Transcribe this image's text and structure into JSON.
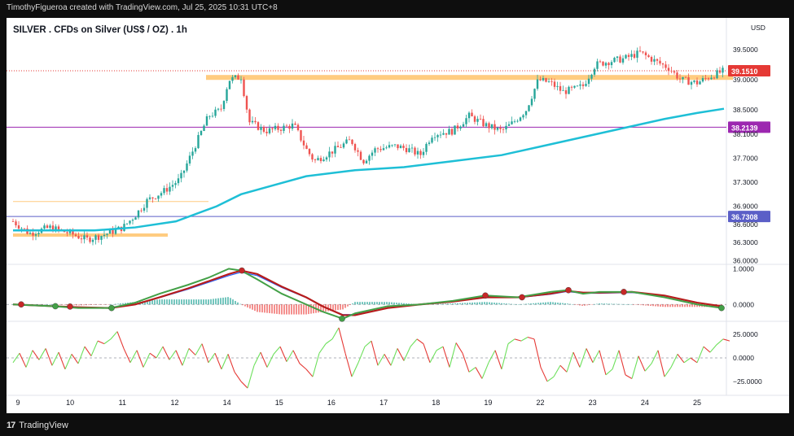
{
  "header": {
    "attribution": "TimothyFigueroa created with TradingView.com, Jul 25, 2025 10:31 UTC+8"
  },
  "footer": {
    "brand": "TradingView",
    "logo_glyph": "17"
  },
  "chart": {
    "title": "SILVER . CFDs on Silver (US$ / OZ) . 1h",
    "currency": "USD"
  },
  "colors": {
    "up": "#26a69a",
    "down": "#ef5350",
    "ma": "#1ebfd6",
    "zone": "#ffcc80",
    "level_purple": "#9c27b0",
    "level_indigo": "#5b5fc7",
    "current_price": "#e53935",
    "macd_fast": "#43a047",
    "macd_slow": "#b71c1c",
    "macd_signal": "#2962ff",
    "osc_up": "#6de05c",
    "osc_down": "#e53935"
  },
  "chart_data": [
    {
      "type": "candlestick",
      "title": "SILVER . CFDs on Silver (US$ / OZ) . 1h",
      "x": [
        "9",
        "10",
        "11",
        "12",
        "14",
        "15",
        "16",
        "17",
        "18",
        "19",
        "22",
        "23",
        "24",
        "25"
      ],
      "ylim": [
        35.95,
        39.65
      ],
      "y_ticks": [
        36.0,
        36.3,
        36.6,
        36.9,
        37.3,
        37.7,
        38.1,
        38.5,
        39.0,
        39.5
      ],
      "y_tick_labels": [
        "36.0000",
        "36.3000",
        "36.6000",
        "36.9000",
        "37.3000",
        "37.7000",
        "38.1000",
        "38.5000",
        "39.0000",
        "39.5000"
      ],
      "price_path": [
        [
          0,
          36.65
        ],
        [
          20,
          36.45
        ],
        [
          45,
          36.55
        ],
        [
          70,
          36.45
        ],
        [
          90,
          36.35
        ],
        [
          110,
          36.42
        ],
        [
          135,
          36.55
        ],
        [
          150,
          36.75
        ],
        [
          165,
          37.0
        ],
        [
          185,
          37.15
        ],
        [
          205,
          37.35
        ],
        [
          220,
          37.8
        ],
        [
          240,
          38.4
        ],
        [
          255,
          38.5
        ],
        [
          265,
          39.0
        ],
        [
          280,
          39.05
        ],
        [
          290,
          38.3
        ],
        [
          310,
          38.15
        ],
        [
          330,
          38.2
        ],
        [
          345,
          38.25
        ],
        [
          360,
          37.85
        ],
        [
          370,
          37.65
        ],
        [
          390,
          37.8
        ],
        [
          415,
          38.0
        ],
        [
          430,
          37.65
        ],
        [
          445,
          37.85
        ],
        [
          470,
          37.9
        ],
        [
          485,
          37.85
        ],
        [
          500,
          37.75
        ],
        [
          515,
          38.1
        ],
        [
          540,
          38.15
        ],
        [
          560,
          38.4
        ],
        [
          580,
          38.25
        ],
        [
          600,
          38.15
        ],
        [
          615,
          38.3
        ],
        [
          630,
          38.5
        ],
        [
          645,
          39.0
        ],
        [
          660,
          38.95
        ],
        [
          675,
          38.8
        ],
        [
          690,
          38.85
        ],
        [
          700,
          38.9
        ],
        [
          715,
          39.25
        ],
        [
          730,
          39.3
        ],
        [
          750,
          39.35
        ],
        [
          770,
          39.45
        ],
        [
          790,
          39.3
        ],
        [
          805,
          39.2
        ],
        [
          820,
          39.0
        ],
        [
          840,
          38.95
        ],
        [
          855,
          39.05
        ],
        [
          873,
          39.15
        ]
      ],
      "series": [
        {
          "name": "",
          "kind": "moving-average",
          "points": [
            [
              0,
              36.5
            ],
            [
              100,
              36.5
            ],
            [
              150,
              36.55
            ],
            [
              200,
              36.65
            ],
            [
              250,
              36.9
            ],
            [
              280,
              37.1
            ],
            [
              320,
              37.25
            ],
            [
              360,
              37.4
            ],
            [
              420,
              37.5
            ],
            [
              480,
              37.55
            ],
            [
              540,
              37.65
            ],
            [
              600,
              37.75
            ],
            [
              650,
              37.9
            ],
            [
              700,
              38.05
            ],
            [
              750,
              38.2
            ],
            [
              800,
              38.35
            ],
            [
              840,
              38.45
            ],
            [
              873,
              38.52
            ]
          ]
        }
      ],
      "resistance_zone": {
        "from_x": 237,
        "to_x": 884,
        "low": 39.0,
        "high": 39.08
      },
      "support_zone": {
        "from_x": 0,
        "to_x": 190,
        "low": 36.4,
        "high": 36.45
      },
      "ref_line_orange": {
        "value": 36.98,
        "from_x": 0,
        "to_x": 240
      },
      "levels": [
        {
          "value": 38.2139,
          "label": "38.2139",
          "color": "#9c27b0"
        },
        {
          "value": 36.7308,
          "label": "36.7308",
          "color": "#5b5fc7"
        },
        {
          "value": 39.151,
          "label": "39.1510",
          "color": "#e53935",
          "style": "dotted"
        }
      ]
    },
    {
      "type": "line",
      "y_ticks": [
        1.0,
        0.0
      ],
      "y_tick_labels": [
        "1.0000",
        "0.0000"
      ],
      "ylim": [
        -0.45,
        1.1
      ],
      "series": [
        {
          "name": "",
          "points": [
            [
              0,
              0.0
            ],
            [
              50,
              -0.05
            ],
            [
              80,
              -0.1
            ],
            [
              120,
              -0.1
            ],
            [
              150,
              0.05
            ],
            [
              180,
              0.3
            ],
            [
              215,
              0.55
            ],
            [
              240,
              0.75
            ],
            [
              265,
              1.0
            ],
            [
              280,
              0.95
            ],
            [
              300,
              0.7
            ],
            [
              330,
              0.3
            ],
            [
              360,
              0.0
            ],
            [
              380,
              -0.2
            ],
            [
              405,
              -0.4
            ],
            [
              420,
              -0.25
            ],
            [
              460,
              -0.05
            ],
            [
              500,
              0.0
            ],
            [
              540,
              0.1
            ],
            [
              580,
              0.25
            ],
            [
              620,
              0.2
            ],
            [
              660,
              0.35
            ],
            [
              680,
              0.4
            ],
            [
              700,
              0.3
            ],
            [
              720,
              0.35
            ],
            [
              760,
              0.35
            ],
            [
              800,
              0.2
            ],
            [
              840,
              0.0
            ],
            [
              870,
              -0.1
            ]
          ]
        },
        {
          "name": "",
          "points": [
            [
              0,
              0.0
            ],
            [
              50,
              -0.05
            ],
            [
              80,
              -0.08
            ],
            [
              120,
              -0.1
            ],
            [
              150,
              0.0
            ],
            [
              180,
              0.2
            ],
            [
              215,
              0.45
            ],
            [
              240,
              0.65
            ],
            [
              265,
              0.85
            ],
            [
              280,
              0.95
            ],
            [
              300,
              0.85
            ],
            [
              330,
              0.5
            ],
            [
              360,
              0.2
            ],
            [
              380,
              -0.05
            ],
            [
              405,
              -0.3
            ],
            [
              420,
              -0.3
            ],
            [
              460,
              -0.1
            ],
            [
              500,
              0.0
            ],
            [
              540,
              0.08
            ],
            [
              580,
              0.2
            ],
            [
              620,
              0.2
            ],
            [
              660,
              0.3
            ],
            [
              680,
              0.38
            ],
            [
              700,
              0.33
            ],
            [
              720,
              0.33
            ],
            [
              760,
              0.35
            ],
            [
              800,
              0.25
            ],
            [
              840,
              0.05
            ],
            [
              870,
              -0.05
            ]
          ]
        }
      ],
      "dots": [
        {
          "x": 10,
          "value": 0.0,
          "color": "#c62828"
        },
        {
          "x": 52,
          "value": -0.05,
          "color": "#43a047"
        },
        {
          "x": 70,
          "value": -0.06,
          "color": "#c62828"
        },
        {
          "x": 121,
          "value": -0.1,
          "color": "#43a047"
        },
        {
          "x": 281,
          "value": 0.95,
          "color": "#c62828"
        },
        {
          "x": 404,
          "value": -0.4,
          "color": "#43a047"
        },
        {
          "x": 580,
          "value": 0.25,
          "color": "#c62828"
        },
        {
          "x": 625,
          "value": 0.2,
          "color": "#c62828"
        },
        {
          "x": 682,
          "value": 0.4,
          "color": "#c62828"
        },
        {
          "x": 750,
          "value": 0.35,
          "color": "#c62828"
        },
        {
          "x": 870,
          "value": -0.1,
          "color": "#43a047"
        }
      ]
    },
    {
      "type": "line",
      "y_ticks": [
        25.0,
        0.0,
        -25.0
      ],
      "y_tick_labels": [
        "25.0000",
        "0.0000",
        "−25.0000"
      ],
      "ylim": [
        -38,
        38
      ],
      "series": [
        {
          "name": "",
          "points": [
            [
              0,
              -5
            ],
            [
              8,
              5
            ],
            [
              16,
              -10
            ],
            [
              24,
              8
            ],
            [
              32,
              -2
            ],
            [
              40,
              10
            ],
            [
              48,
              -8
            ],
            [
              56,
              6
            ],
            [
              64,
              -12
            ],
            [
              72,
              4
            ],
            [
              80,
              -6
            ],
            [
              88,
              12
            ],
            [
              96,
              2
            ],
            [
              104,
              18
            ],
            [
              112,
              15
            ],
            [
              120,
              20
            ],
            [
              128,
              28
            ],
            [
              136,
              10
            ],
            [
              144,
              -5
            ],
            [
              152,
              8
            ],
            [
              160,
              -10
            ],
            [
              168,
              5
            ],
            [
              176,
              0
            ],
            [
              184,
              12
            ],
            [
              192,
              -2
            ],
            [
              200,
              8
            ],
            [
              208,
              -8
            ],
            [
              216,
              10
            ],
            [
              224,
              3
            ],
            [
              232,
              15
            ],
            [
              240,
              -5
            ],
            [
              248,
              5
            ],
            [
              256,
              -12
            ],
            [
              264,
              4
            ],
            [
              272,
              -15
            ],
            [
              280,
              -25
            ],
            [
              288,
              -32
            ],
            [
              296,
              -8
            ],
            [
              304,
              6
            ],
            [
              312,
              -10
            ],
            [
              320,
              4
            ],
            [
              328,
              12
            ],
            [
              336,
              -4
            ],
            [
              344,
              8
            ],
            [
              352,
              -6
            ],
            [
              360,
              -12
            ],
            [
              368,
              -20
            ],
            [
              376,
              5
            ],
            [
              384,
              15
            ],
            [
              392,
              20
            ],
            [
              400,
              32
            ],
            [
              408,
              5
            ],
            [
              416,
              -20
            ],
            [
              424,
              -5
            ],
            [
              432,
              12
            ],
            [
              440,
              18
            ],
            [
              448,
              -8
            ],
            [
              456,
              4
            ],
            [
              464,
              -8
            ],
            [
              472,
              10
            ],
            [
              480,
              -3
            ],
            [
              488,
              12
            ],
            [
              496,
              20
            ],
            [
              504,
              15
            ],
            [
              512,
              -5
            ],
            [
              520,
              8
            ],
            [
              528,
              12
            ],
            [
              536,
              -10
            ],
            [
              544,
              16
            ],
            [
              552,
              5
            ],
            [
              560,
              -15
            ],
            [
              568,
              -10
            ],
            [
              576,
              -22
            ],
            [
              584,
              -5
            ],
            [
              592,
              8
            ],
            [
              600,
              -12
            ],
            [
              608,
              15
            ],
            [
              616,
              20
            ],
            [
              624,
              18
            ],
            [
              632,
              22
            ],
            [
              640,
              20
            ],
            [
              648,
              -10
            ],
            [
              656,
              -25
            ],
            [
              664,
              -20
            ],
            [
              672,
              -8
            ],
            [
              680,
              -15
            ],
            [
              688,
              6
            ],
            [
              696,
              -10
            ],
            [
              704,
              10
            ],
            [
              712,
              -5
            ],
            [
              720,
              8
            ],
            [
              728,
              -18
            ],
            [
              736,
              -12
            ],
            [
              744,
              8
            ],
            [
              752,
              -18
            ],
            [
              760,
              -22
            ],
            [
              768,
              2
            ],
            [
              776,
              -14
            ],
            [
              784,
              -6
            ],
            [
              792,
              8
            ],
            [
              800,
              -20
            ],
            [
              808,
              -10
            ],
            [
              816,
              4
            ],
            [
              824,
              -5
            ],
            [
              832,
              0
            ],
            [
              840,
              -5
            ],
            [
              848,
              12
            ],
            [
              856,
              6
            ],
            [
              864,
              14
            ],
            [
              872,
              20
            ],
            [
              880,
              18
            ]
          ]
        }
      ]
    }
  ]
}
